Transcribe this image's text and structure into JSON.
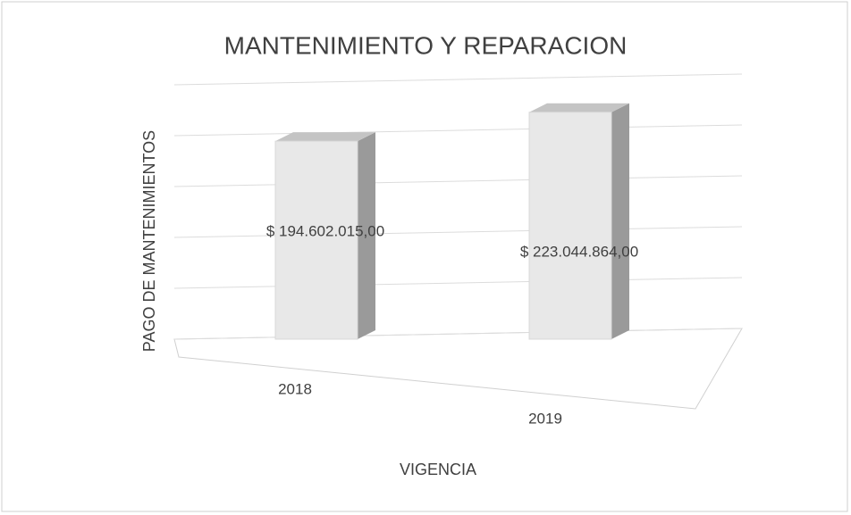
{
  "chart_data": {
    "type": "bar3d",
    "title": "MANTENIMIENTO Y REPARACION",
    "y_label": "PAGO DE MANTENIMIENTOS",
    "x_label": "VIGENCIA",
    "categories": [
      "2018",
      "2019"
    ],
    "values": [
      194602015,
      223044864
    ],
    "value_labels": [
      "$ 194.602.015,00",
      "$ 223.044.864,00"
    ],
    "color": "#e8e8e8",
    "ylim": [
      0,
      250000000
    ],
    "yticks": [
      0,
      50000000,
      100000000,
      150000000,
      200000000,
      250000000
    ],
    "grid": true
  }
}
